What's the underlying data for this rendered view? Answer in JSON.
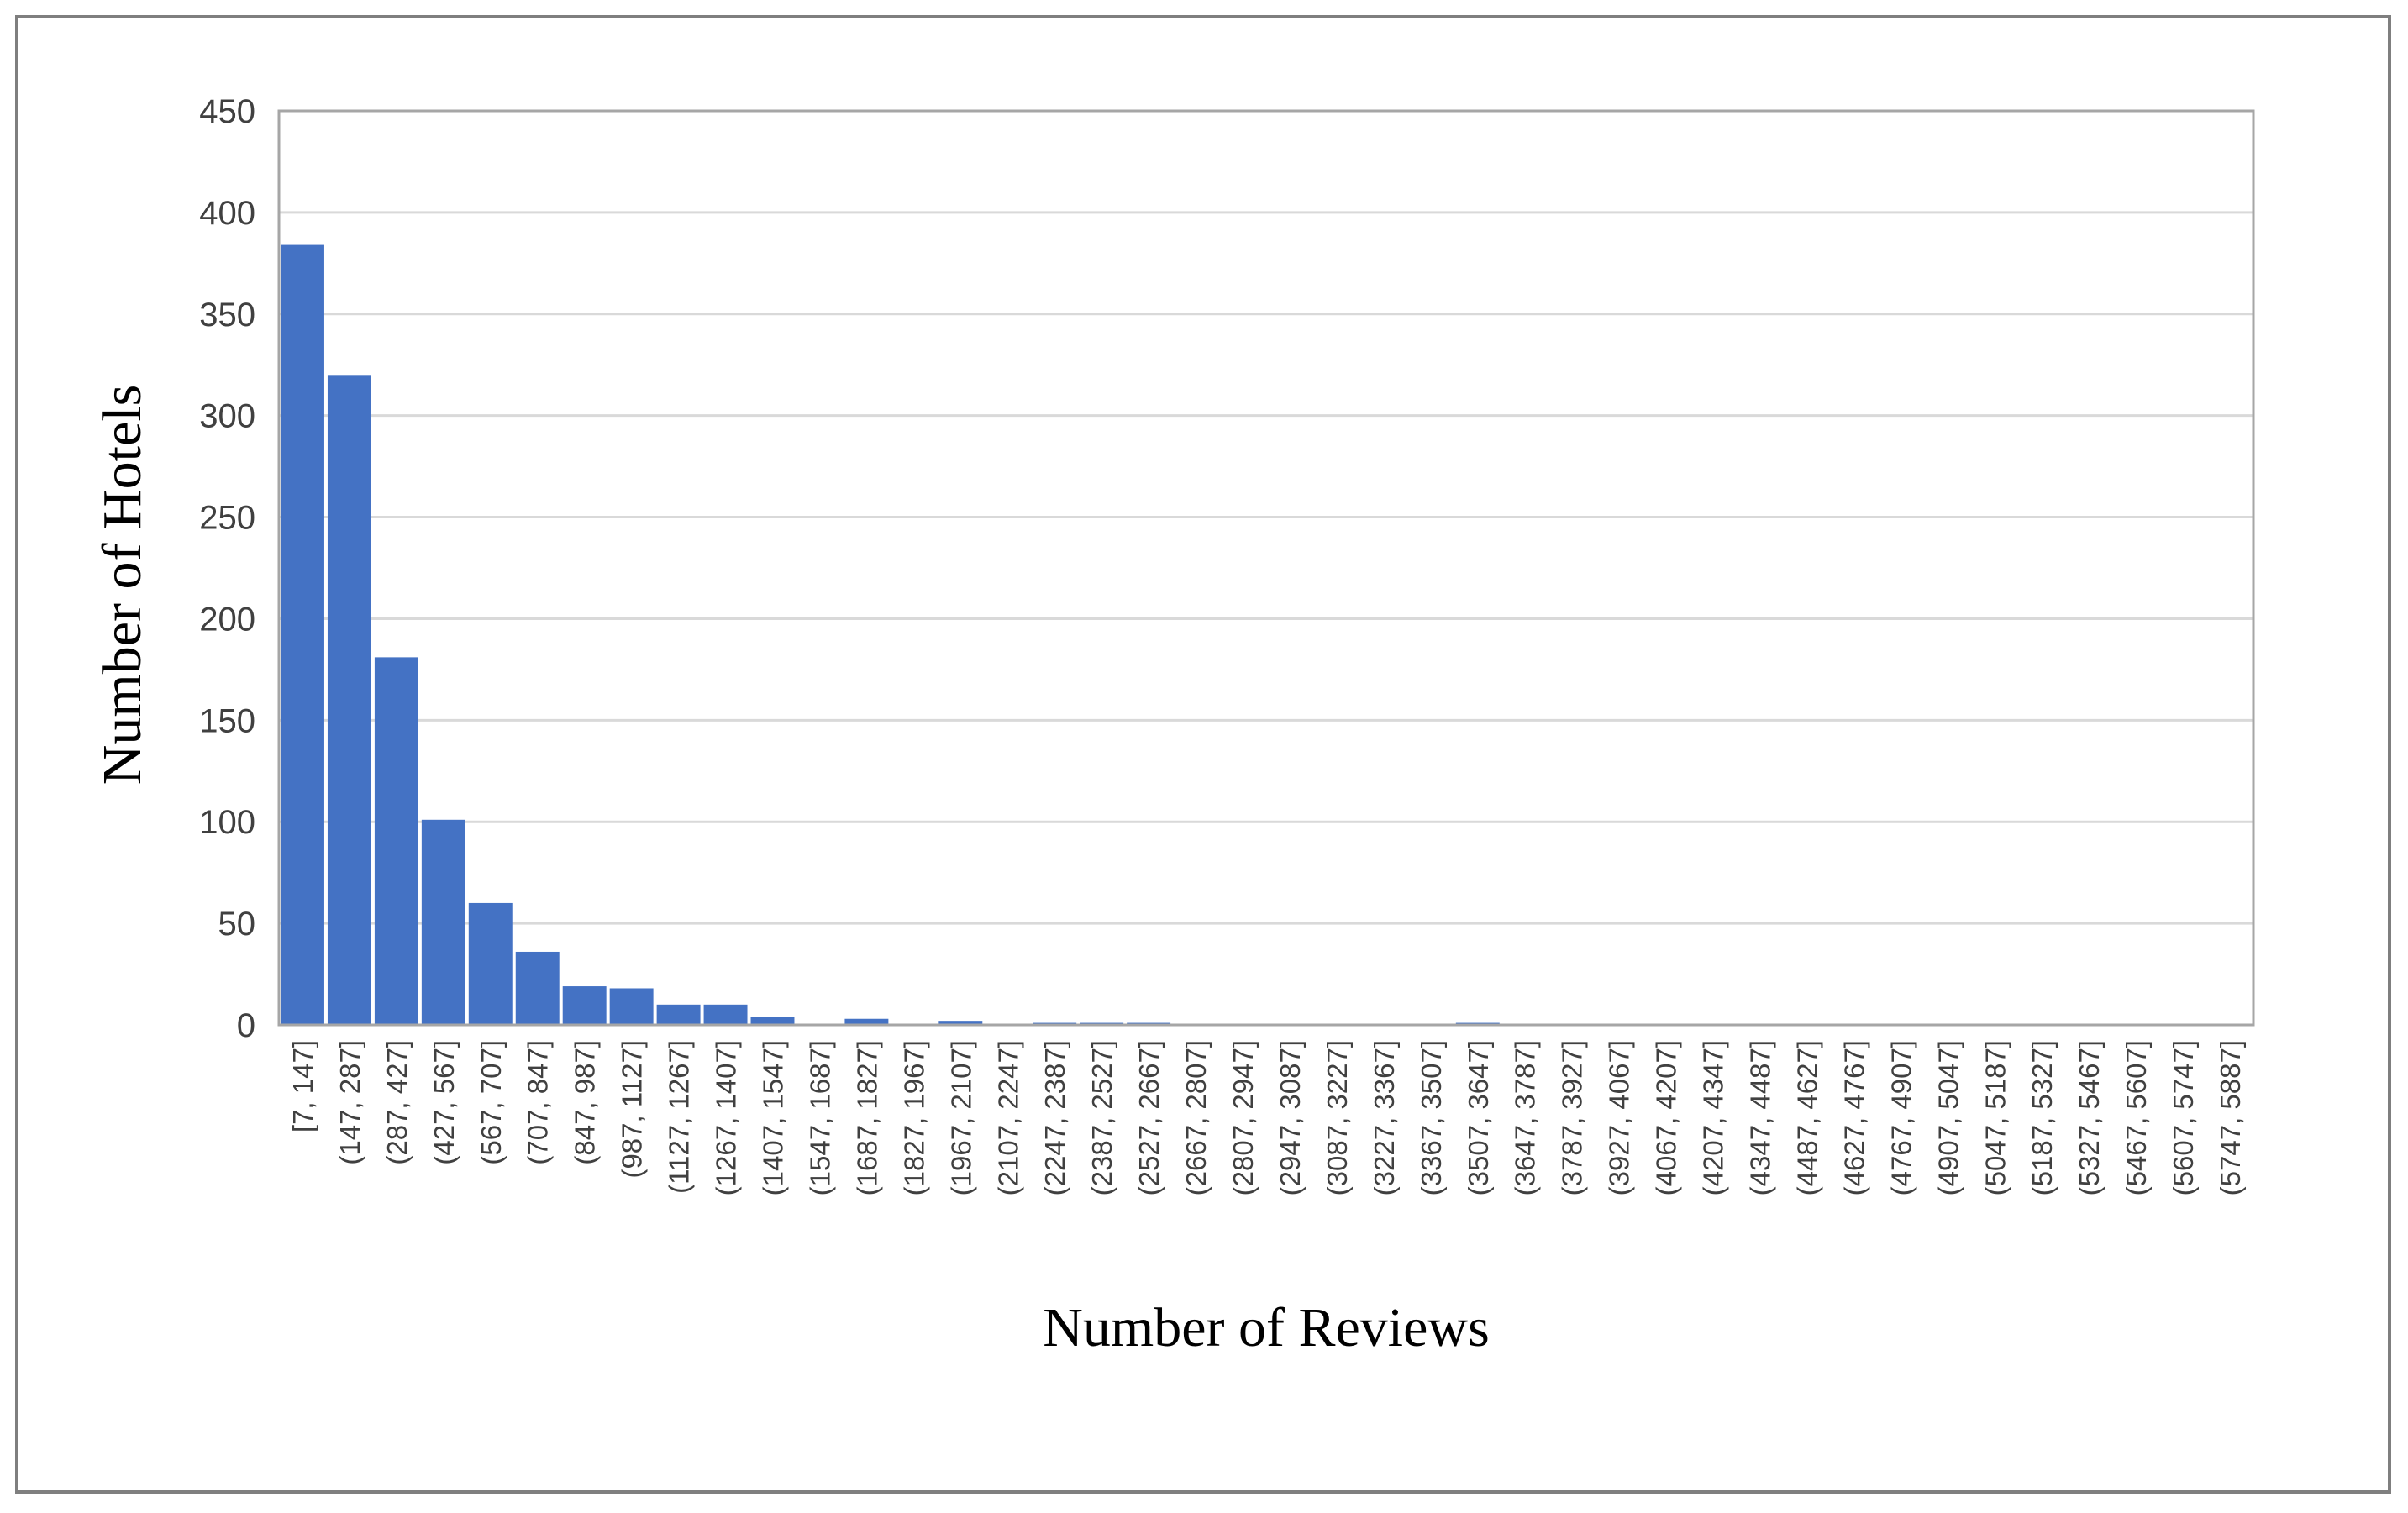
{
  "chart_data": {
    "type": "bar",
    "xlabel": "Number of Reviews",
    "ylabel": "Number of Hotels",
    "ylim": [
      0,
      450
    ],
    "yticks": [
      0,
      50,
      100,
      150,
      200,
      250,
      300,
      350,
      400,
      450
    ],
    "grid": true,
    "legend": "none",
    "bar_color": "#4472C4",
    "categories": [
      "[7, 147]",
      "(147, 287]",
      "(287, 427]",
      "(427, 567]",
      "(567, 707]",
      "(707, 847]",
      "(847, 987]",
      "(987, 1127]",
      "(1127, 1267]",
      "(1267, 1407]",
      "(1407, 1547]",
      "(1547, 1687]",
      "(1687, 1827]",
      "(1827, 1967]",
      "(1967, 2107]",
      "(2107, 2247]",
      "(2247, 2387]",
      "(2387, 2527]",
      "(2527, 2667]",
      "(2667, 2807]",
      "(2807, 2947]",
      "(2947, 3087]",
      "(3087, 3227]",
      "(3227, 3367]",
      "(3367, 3507]",
      "(3507, 3647]",
      "(3647, 3787]",
      "(3787, 3927]",
      "(3927, 4067]",
      "(4067, 4207]",
      "(4207, 4347]",
      "(4347, 4487]",
      "(4487, 4627]",
      "(4627, 4767]",
      "(4767, 4907]",
      "(4907, 5047]",
      "(5047, 5187]",
      "(5187, 5327]",
      "(5327, 5467]",
      "(5467, 5607]",
      "(5607, 5747]",
      "(5747, 5887]"
    ],
    "values": [
      384,
      320,
      181,
      101,
      60,
      36,
      19,
      18,
      10,
      10,
      4,
      0,
      3,
      0,
      2,
      0,
      1,
      1,
      1,
      0,
      0,
      0,
      0,
      0,
      0,
      1,
      0,
      0,
      0,
      0,
      0,
      0,
      0,
      0,
      0,
      0,
      0,
      0,
      0,
      0,
      0,
      0
    ]
  }
}
